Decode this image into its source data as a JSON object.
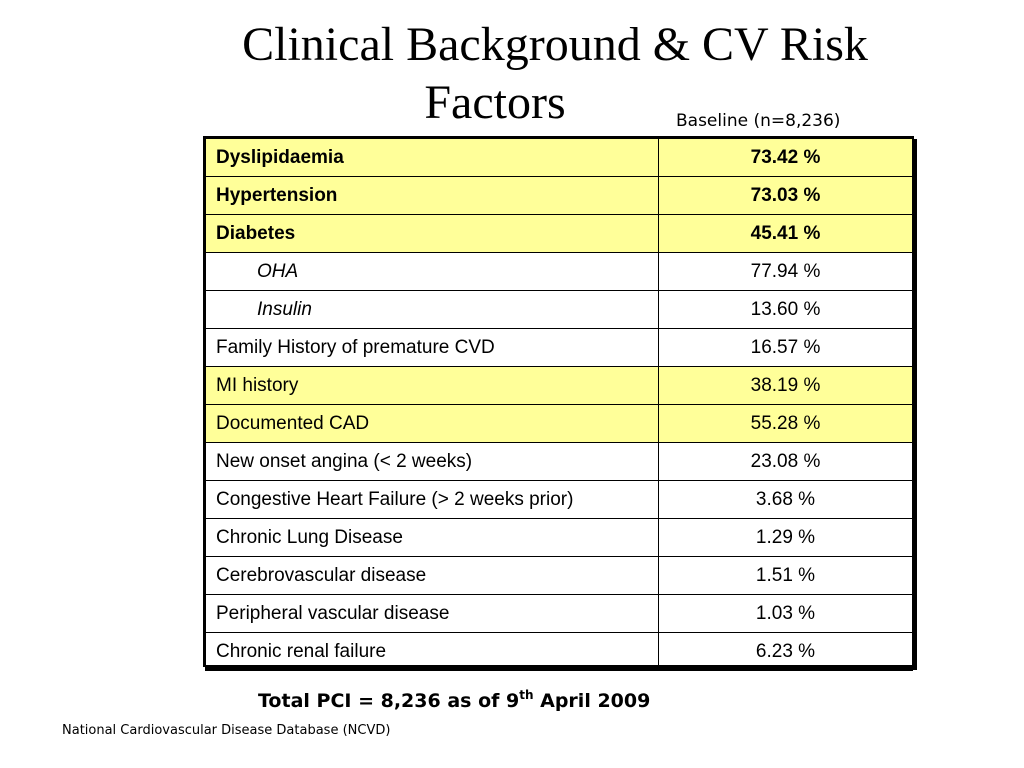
{
  "slide": {
    "title_line1": "Clinical Background & CV Risk",
    "title_line2": "Factors",
    "baseline_label": "Baseline (n=8,236)",
    "footer_total_prefix": "Total PCI = 8,236 as of  9",
    "footer_total_sup": "th",
    "footer_total_suffix": " April 2009",
    "source": "National Cardiovascular Disease Database (NCVD)",
    "highlight_color": "#ffff99"
  },
  "table": {
    "rows": [
      {
        "label": "Dyslipidaemia",
        "value": "73.42 %",
        "highlight": true,
        "bold": true,
        "sub": false
      },
      {
        "label": "Hypertension",
        "value": "73.03 %",
        "highlight": true,
        "bold": true,
        "sub": false
      },
      {
        "label": "Diabetes",
        "value": "45.41 %",
        "highlight": true,
        "bold": true,
        "sub": false
      },
      {
        "label": "OHA",
        "value": "77.94 %",
        "highlight": false,
        "bold": false,
        "sub": true
      },
      {
        "label": "Insulin",
        "value": "13.60 %",
        "highlight": false,
        "bold": false,
        "sub": true
      },
      {
        "label": "Family History of premature CVD",
        "value": "16.57 %",
        "highlight": false,
        "bold": false,
        "sub": false
      },
      {
        "label": "MI history",
        "value": "38.19 %",
        "highlight": true,
        "bold": false,
        "sub": false
      },
      {
        "label": "Documented CAD",
        "value": "55.28 %",
        "highlight": true,
        "bold": false,
        "sub": false
      },
      {
        "label": "New onset angina (< 2 weeks)",
        "value": "23.08 %",
        "highlight": false,
        "bold": false,
        "sub": false
      },
      {
        "label": "Congestive Heart Failure (> 2 weeks prior)",
        "value": "3.68 %",
        "highlight": false,
        "bold": false,
        "sub": false
      },
      {
        "label": "Chronic Lung Disease",
        "value": "1.29 %",
        "highlight": false,
        "bold": false,
        "sub": false
      },
      {
        "label": "Cerebrovascular disease",
        "value": "1.51 %",
        "highlight": false,
        "bold": false,
        "sub": false
      },
      {
        "label": "Peripheral vascular disease",
        "value": "1.03 %",
        "highlight": false,
        "bold": false,
        "sub": false
      },
      {
        "label": "Chronic renal failure",
        "value": "6.23 %",
        "highlight": false,
        "bold": false,
        "sub": false
      }
    ]
  }
}
